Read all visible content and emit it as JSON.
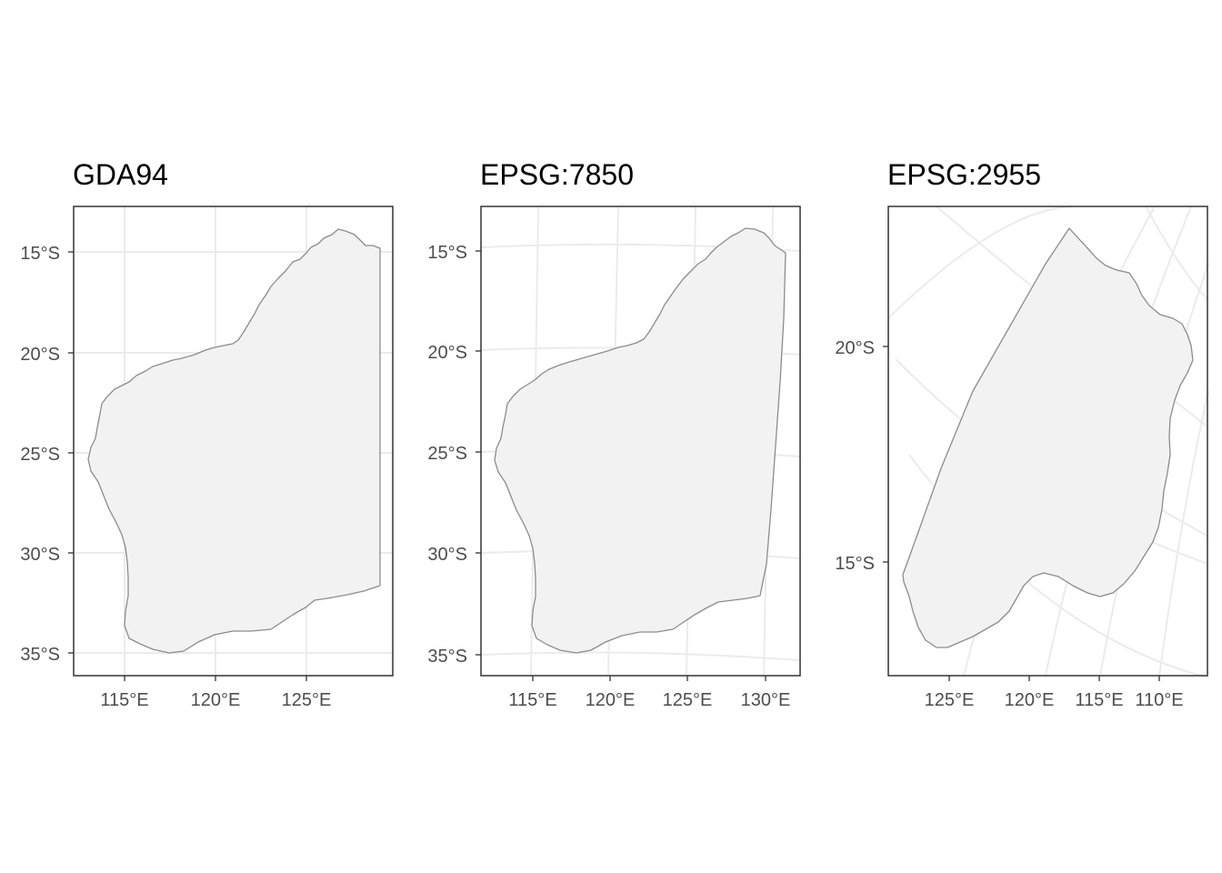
{
  "panels": [
    {
      "title": "GDA94",
      "lat_labels": [
        "15°S",
        "20°S",
        "25°S",
        "30°S",
        "35°S"
      ],
      "lon_labels": [
        "115°E",
        "120°E",
        "125°E"
      ]
    },
    {
      "title": "EPSG:7850",
      "lat_labels": [
        "15°S",
        "20°S",
        "25°S",
        "30°S",
        "35°S"
      ],
      "lon_labels": [
        "115°E",
        "120°E",
        "125°E",
        "130°E"
      ]
    },
    {
      "title": "EPSG:2955",
      "lat_labels": [
        "20°S",
        "15°S"
      ],
      "lon_labels": [
        "125°E",
        "120°E",
        "115°E",
        "110°E"
      ]
    }
  ],
  "colors": {
    "land_fill": "#f2f2f2",
    "coast_outline": "#8c8c8c",
    "graticule": "#ebebeb",
    "panel_border": "#333333"
  }
}
